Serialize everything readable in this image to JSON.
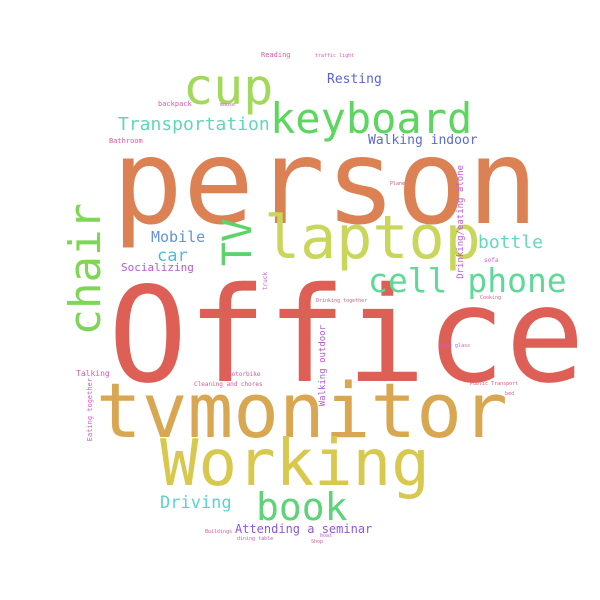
{
  "words": [
    {
      "key": "person",
      "text": "person",
      "color": "#dc8154"
    },
    {
      "key": "office",
      "text": "Office",
      "color": "#de5f55"
    },
    {
      "key": "tvmonitor",
      "text": "tvmonitor",
      "color": "#d9a652"
    },
    {
      "key": "working",
      "text": "Working",
      "color": "#d8c84e"
    },
    {
      "key": "laptop",
      "text": "laptop",
      "color": "#c8d65a"
    },
    {
      "key": "keyboard",
      "text": "keyboard",
      "color": "#5cd65e"
    },
    {
      "key": "cup",
      "text": "cup",
      "color": "#a3d95a"
    },
    {
      "key": "chair",
      "text": "chair",
      "color": "#7fd655"
    },
    {
      "key": "tv",
      "text": "TV",
      "color": "#5dd46a"
    },
    {
      "key": "cell_phone",
      "text": "cell phone",
      "color": "#5fd997"
    },
    {
      "key": "book",
      "text": "book",
      "color": "#5cd477"
    },
    {
      "key": "bottle",
      "text": "bottle",
      "color": "#5fd9c2"
    },
    {
      "key": "transportation",
      "text": "Transportation",
      "color": "#5fd8b7"
    },
    {
      "key": "mobile",
      "text": "Mobile",
      "color": "#6394d6"
    },
    {
      "key": "car",
      "text": "car",
      "color": "#57b8d8"
    },
    {
      "key": "driving",
      "text": "Driving",
      "color": "#5ad3d6"
    },
    {
      "key": "resting",
      "text": "Resting",
      "color": "#5a63d6"
    },
    {
      "key": "walking_indoor",
      "text": "Walking indoor",
      "color": "#5a6ad6"
    },
    {
      "key": "socializing",
      "text": "Socializing",
      "color": "#b05ad6"
    },
    {
      "key": "attending_seminar",
      "text": "Attending a seminar",
      "color": "#8e57d6"
    },
    {
      "key": "walking_outdoor",
      "text": "Walking outdoor",
      "color": "#b35ad6"
    },
    {
      "key": "drinking_eating_alone",
      "text": "Drinking/eating alone",
      "color": "#c45ad6"
    },
    {
      "key": "talking",
      "text": "Talking",
      "color": "#d65ab8"
    },
    {
      "key": "eating_together",
      "text": "Eating together",
      "color": "#d65ad0"
    },
    {
      "key": "bathroom",
      "text": "Bathroom",
      "color": "#d65a9c"
    },
    {
      "key": "backpack",
      "text": "backpack",
      "color": "#d65ab0"
    },
    {
      "key": "reading",
      "text": "Reading",
      "color": "#d65aa0"
    },
    {
      "key": "traffic_light",
      "text": "traffic light",
      "color": "#d65ab8"
    },
    {
      "key": "mouse",
      "text": "mouse",
      "color": "#d65ac4"
    },
    {
      "key": "plane",
      "text": "Plane",
      "color": "#d65a7a"
    },
    {
      "key": "truck",
      "text": "truck",
      "color": "#c45ad6"
    },
    {
      "key": "sofa",
      "text": "sofa",
      "color": "#d65ad6"
    },
    {
      "key": "drinking_together",
      "text": "Drinking together",
      "color": "#d65a8a"
    },
    {
      "key": "cooking",
      "text": "Cooking",
      "color": "#d65a9a"
    },
    {
      "key": "wine_glass",
      "text": "wine glass",
      "color": "#d65ab4"
    },
    {
      "key": "motorbike",
      "text": "motorbike",
      "color": "#d65aa4"
    },
    {
      "key": "cleaning_chores",
      "text": "Cleaning and chores",
      "color": "#d65a8e"
    },
    {
      "key": "public_transport",
      "text": "Public Transport",
      "color": "#d65a84"
    },
    {
      "key": "bed",
      "text": "bed",
      "color": "#d65a96"
    },
    {
      "key": "buildings",
      "text": "Buildings",
      "color": "#d65a94"
    },
    {
      "key": "dining_table",
      "text": "dining table",
      "color": "#d65aa8"
    },
    {
      "key": "boat",
      "text": "boat",
      "color": "#c05ad6"
    },
    {
      "key": "shop",
      "text": "Shop",
      "color": "#d65a9e"
    }
  ]
}
